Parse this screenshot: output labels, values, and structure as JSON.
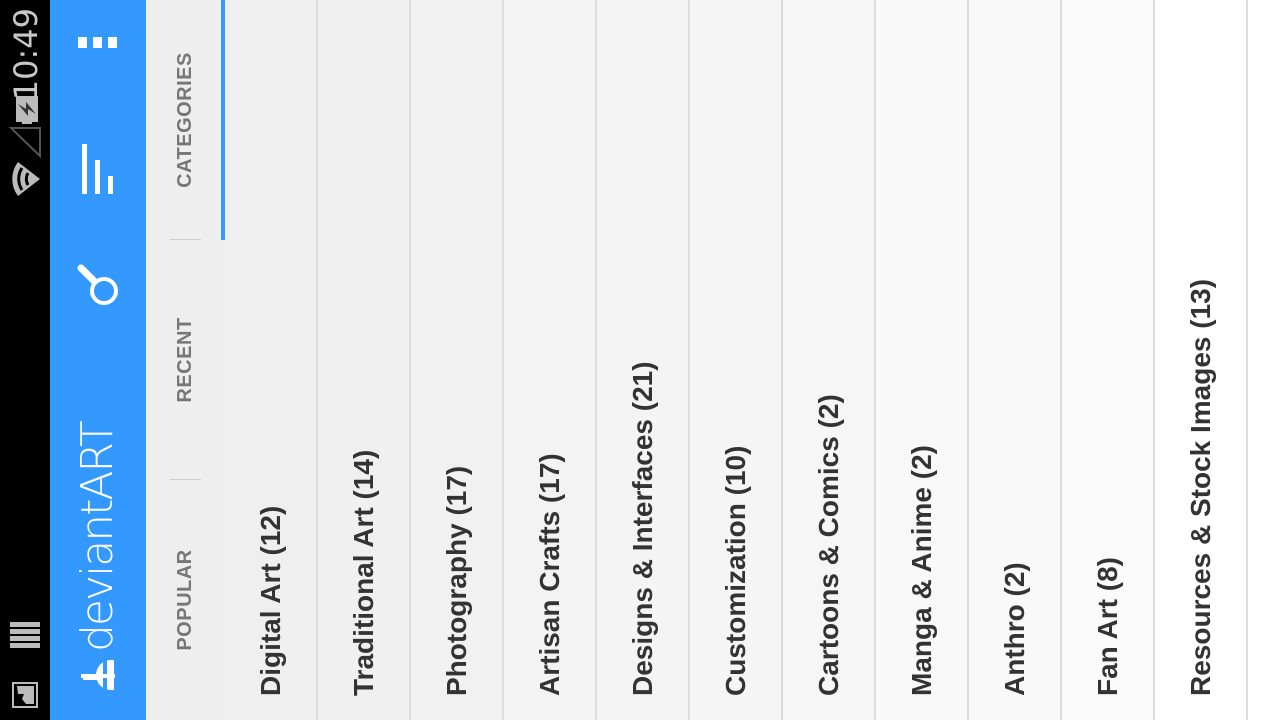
{
  "status_bar": {
    "time": "10:49",
    "icons": [
      "image-notification-icon",
      "storage-notification-icon",
      "wifi-icon",
      "cell-signal-icon",
      "battery-charging-icon"
    ]
  },
  "action_bar": {
    "logo_text": "deviantART",
    "icons": [
      "search-icon",
      "bar-chart-icon",
      "overflow-menu-icon"
    ],
    "color": "#3399ff"
  },
  "tabs": [
    {
      "label": "POPULAR",
      "selected": false
    },
    {
      "label": "RECENT",
      "selected": false
    },
    {
      "label": "CATEGORIES",
      "selected": true
    }
  ],
  "categories": [
    "Digital Art (12)",
    "Traditional Art (14)",
    "Photography (17)",
    "Artisan Crafts (17)",
    "Designs & Interfaces (21)",
    "Customization (10)",
    "Cartoons & Comics (2)",
    "Manga & Anime (2)",
    "Anthro (2)",
    "Fan Art (8)",
    "Resources & Stock Images (13)"
  ]
}
